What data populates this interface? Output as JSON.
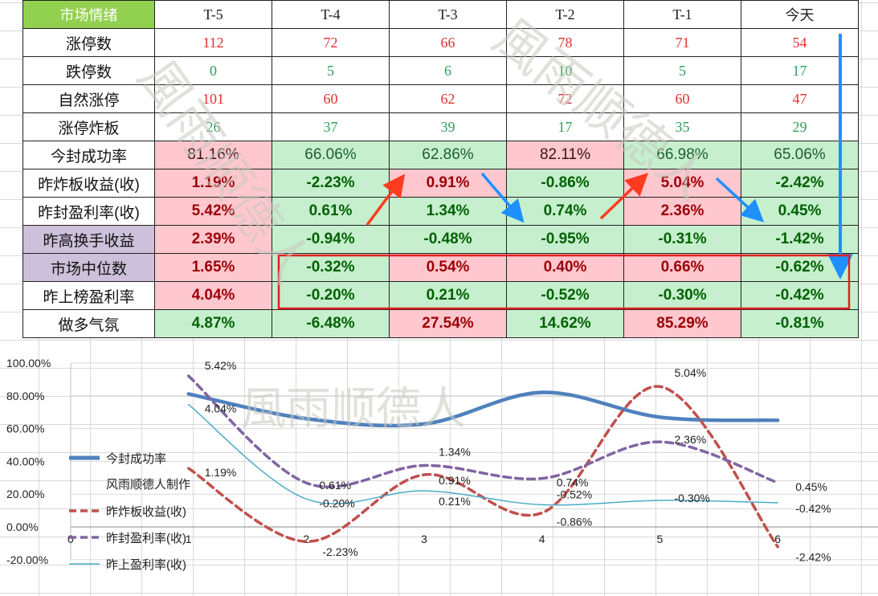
{
  "table": {
    "corner_label": "市场情绪",
    "days": [
      "T-5",
      "T-4",
      "T-3",
      "T-2",
      "T-1",
      "今天"
    ],
    "count_rows": [
      {
        "label": "涨停数",
        "color": "red",
        "values": [
          "112",
          "72",
          "66",
          "78",
          "71",
          "54"
        ]
      },
      {
        "label": "跌停数",
        "color": "green",
        "values": [
          "0",
          "5",
          "6",
          "10",
          "5",
          "17"
        ]
      },
      {
        "label": "自然涨停",
        "color": "red",
        "values": [
          "101",
          "60",
          "62",
          "72",
          "60",
          "47"
        ]
      },
      {
        "label": "涨停炸板",
        "color": "green",
        "values": [
          "26",
          "37",
          "39",
          "17",
          "35",
          "29"
        ]
      }
    ],
    "pct_rows": [
      {
        "label": "今封成功率",
        "purple": false,
        "bold": false,
        "values": [
          "81.16%",
          "66.06%",
          "62.86%",
          "82.11%",
          "66.98%",
          "65.06%"
        ],
        "signs": [
          "pos",
          "neg",
          "neg",
          "pos",
          "neg",
          "neg"
        ]
      },
      {
        "label": "昨炸板收益(收)",
        "purple": false,
        "bold": true,
        "values": [
          "1.19%",
          "-2.23%",
          "0.91%",
          "-0.86%",
          "5.04%",
          "-2.42%"
        ],
        "signs": [
          "pos",
          "neg",
          "pos",
          "neg",
          "pos",
          "neg"
        ]
      },
      {
        "label": "昨封盈利率(收)",
        "purple": false,
        "bold": true,
        "values": [
          "5.42%",
          "0.61%",
          "1.34%",
          "0.74%",
          "2.36%",
          "0.45%"
        ],
        "signs": [
          "pos",
          "neg",
          "neg",
          "neg",
          "pos",
          "neg"
        ]
      },
      {
        "label": "昨高换手收益",
        "purple": true,
        "bold": true,
        "values": [
          "2.39%",
          "-0.94%",
          "-0.48%",
          "-0.95%",
          "-0.31%",
          "-1.42%"
        ],
        "signs": [
          "pos",
          "neg",
          "neg",
          "neg",
          "neg",
          "neg"
        ]
      },
      {
        "label": "市场中位数",
        "purple": true,
        "bold": true,
        "values": [
          "1.65%",
          "-0.32%",
          "0.54%",
          "0.40%",
          "0.66%",
          "-0.62%"
        ],
        "signs": [
          "pos",
          "neg",
          "pos",
          "pos",
          "pos",
          "neg"
        ]
      },
      {
        "label": "昨上榜盈利率",
        "purple": false,
        "bold": true,
        "values": [
          "4.04%",
          "-0.20%",
          "0.21%",
          "-0.52%",
          "-0.30%",
          "-0.42%"
        ],
        "signs": [
          "pos",
          "neg",
          "neg",
          "neg",
          "neg",
          "neg"
        ]
      },
      {
        "label": "做多气氛",
        "purple": false,
        "bold": true,
        "values": [
          "4.87%",
          "-6.48%",
          "27.54%",
          "14.62%",
          "85.29%",
          "-0.81%"
        ],
        "signs": [
          "neg",
          "neg",
          "pos",
          "neg",
          "pos",
          "neg"
        ]
      }
    ]
  },
  "watermark": {
    "text": "風雨顺德人",
    "text_b": "風雨顺德人"
  },
  "colors": {
    "header_green": "#92d050",
    "purple_label": "#ccc0da",
    "pos_fill": "#ffc7ce",
    "neg_fill": "#c6efce",
    "red_count": "#e03030",
    "green_count": "#2f9e58",
    "arrow_red": "#ff3b1f",
    "arrow_blue": "#1e90ff",
    "box_red": "#e02020"
  },
  "chart_data": {
    "type": "line",
    "x": [
      1,
      2,
      3,
      4,
      5,
      6
    ],
    "x_ticks": [
      "0",
      "1",
      "2",
      "3",
      "4",
      "5",
      "6"
    ],
    "xlim": [
      0,
      6.9
    ],
    "ylim": [
      -0.2,
      1.0
    ],
    "y_ticks": [
      "-20.00%",
      "0.00%",
      "20.00%",
      "40.00%",
      "60.00%",
      "80.00%",
      "100.00%"
    ],
    "y_tick_values": [
      -0.2,
      0.0,
      0.2,
      0.4,
      0.6,
      0.8,
      1.0
    ],
    "grid": true,
    "legend_position": "left",
    "legend_note": "风雨顺德人制作",
    "series": [
      {
        "name": "今封成功率",
        "color": "#4f81bd",
        "style": "solid-thick",
        "values": [
          0.8116,
          0.6606,
          0.6286,
          0.8211,
          0.6698,
          0.6506
        ],
        "labels": []
      },
      {
        "name": "昨炸板收益(收)",
        "color": "#c0504d",
        "style": "dashed",
        "values": [
          0.357,
          -0.0892,
          0.3185,
          0.086,
          0.8568,
          -0.121
        ],
        "labels": [
          "1.19%",
          "-2.23%",
          "0.91%",
          "-0.86%",
          "5.04%",
          "-2.42%"
        ]
      },
      {
        "name": "昨封盈利率(收)",
        "color": "#8064a2",
        "style": "dashed",
        "values": [
          0.9214,
          0.2684,
          0.3752,
          0.296,
          0.5192,
          0.27
        ],
        "labels": [
          "5.42%",
          "0.61%",
          "1.34%",
          "0.74%",
          "2.36%",
          "0.45%"
        ]
      },
      {
        "name": "昨上盈利率(收)",
        "color": "#4bacc6",
        "style": "solid-thin",
        "values": [
          0.7474,
          0.17,
          0.2205,
          0.1352,
          0.162,
          0.1474
        ],
        "labels": [
          "4.04%",
          "-0.20%",
          "0.21%",
          "-0.52%",
          "-0.30%",
          "-0.42%"
        ]
      }
    ]
  }
}
